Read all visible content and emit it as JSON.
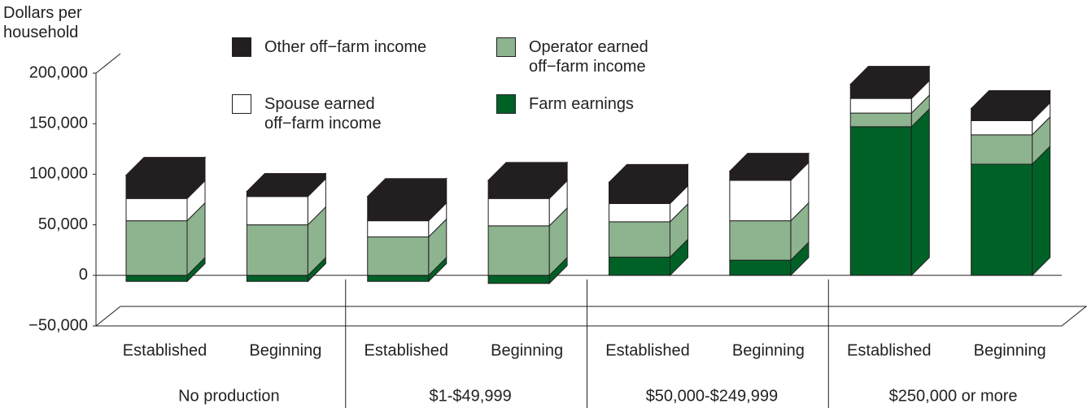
{
  "chart_data": {
    "type": "bar3d_stacked",
    "y_label": "Dollars per household",
    "categories": [
      "Established",
      "Beginning",
      "Established",
      "Beginning",
      "Established",
      "Beginning",
      "Established",
      "Beginning"
    ],
    "groups": [
      "No production",
      "$1-$49,999",
      "$50,000-$249,999",
      "$250,000 or more"
    ],
    "series": [
      {
        "name": "Farm earnings",
        "color": "#006127",
        "values": [
          -6000,
          -6000,
          -6000,
          -8000,
          18000,
          15000,
          147000,
          110000
        ]
      },
      {
        "name": "Operator earned off−farm income",
        "color": "#8db38f",
        "values": [
          54000,
          50000,
          38000,
          49000,
          35000,
          39000,
          13500,
          29000
        ]
      },
      {
        "name": "Spouse earned off−farm income",
        "color": "#ffffff",
        "values": [
          22000,
          28000,
          16000,
          27000,
          18000,
          40000,
          14500,
          14000
        ]
      },
      {
        "name": "Other off−farm income",
        "color": "#231f20",
        "values": [
          23000,
          5000,
          24000,
          18000,
          21000,
          9000,
          14000,
          12000
        ]
      }
    ],
    "ylim": [
      -50000,
      200000
    ],
    "yticks": [
      {
        "value": -50000,
        "label": "−50,000"
      },
      0,
      {
        "value": 50000,
        "label": "50,000"
      },
      {
        "value": 100000,
        "label": "100,000"
      },
      {
        "value": 150000,
        "label": "150,000"
      },
      {
        "value": 200000,
        "label": "200,000"
      }
    ]
  }
}
